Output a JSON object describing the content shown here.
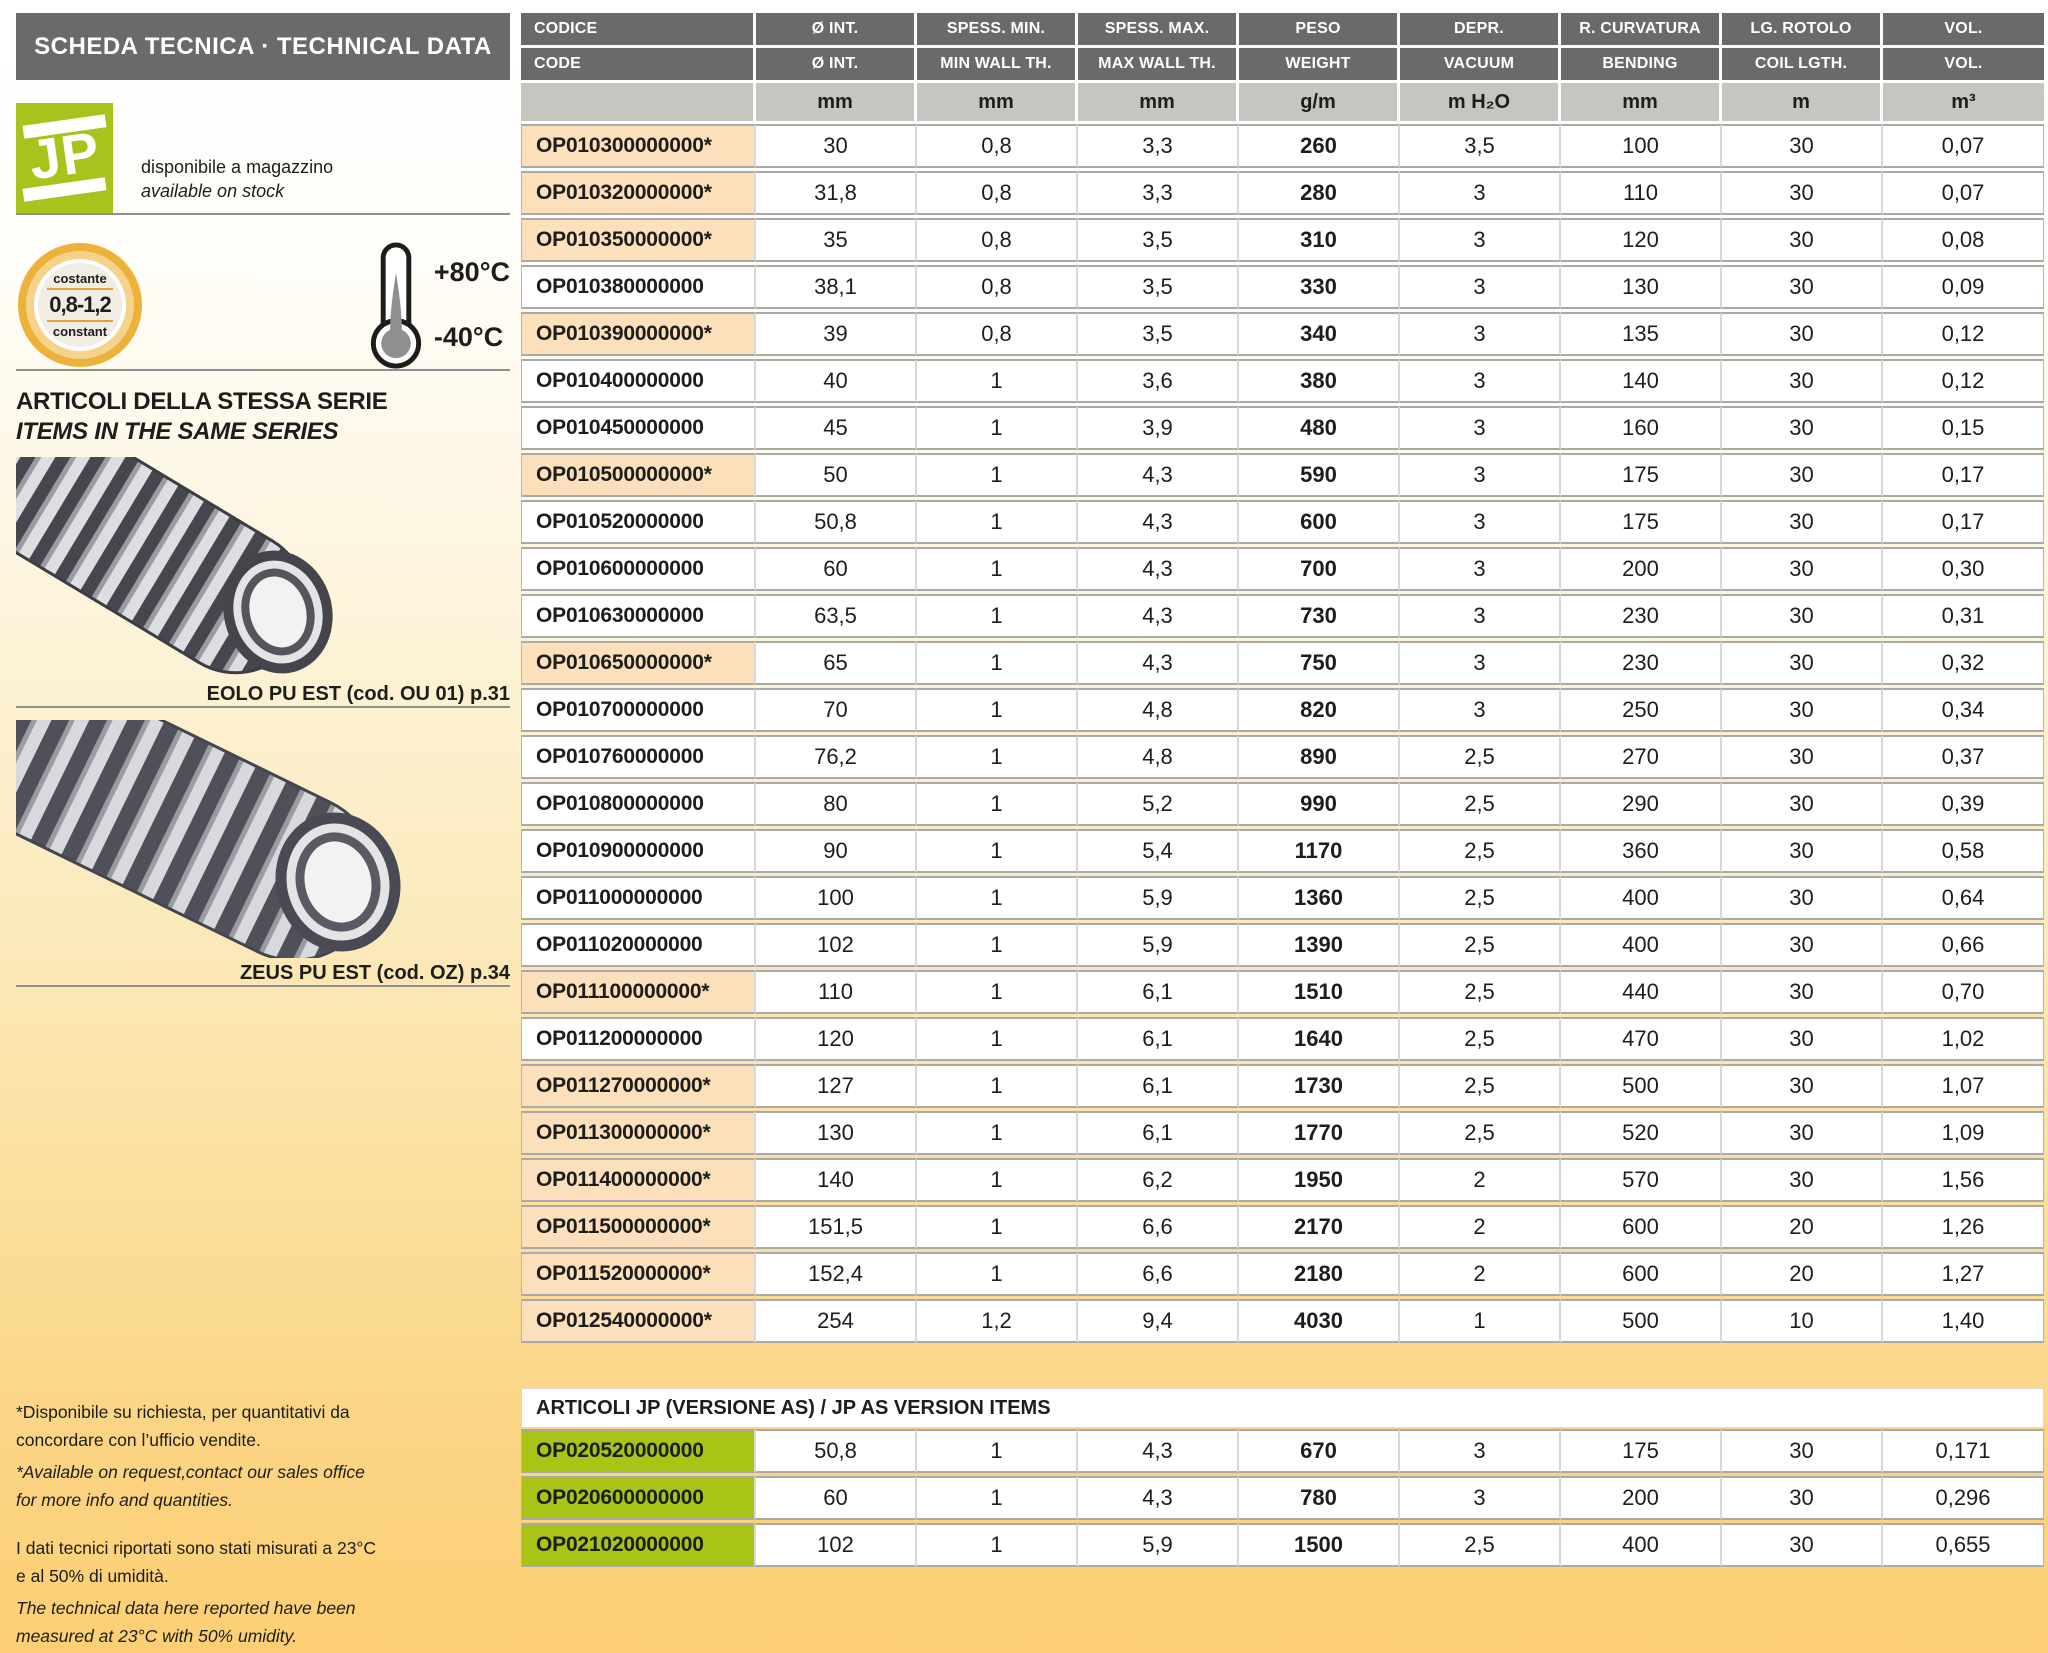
{
  "colors": {
    "header_gray": "#6a6a6a",
    "units_gray": "#c7c5c2",
    "highlight_peach": "#fce0bc",
    "as_green": "#a9c417",
    "jp_green": "#a6c41b",
    "badge_gold": "#edb23c",
    "page_bottom": "#fccf74"
  },
  "sidebar": {
    "title": "SCHEDA TECNICA · TECHNICAL DATA",
    "logo_text": "JP",
    "stock_note_it": "disponibile a magazzino",
    "stock_note_en": "available on stock",
    "badge": {
      "top": "costante",
      "value": "0,8-1,2",
      "bottom": "constant"
    },
    "temperature": {
      "max": "+80°C",
      "min": "-40°C"
    },
    "series_title_it": "ARTICOLI DELLA STESSA SERIE",
    "series_title_en": "ITEMS IN THE SAME SERIES",
    "related_items": [
      {
        "name": "EOLO PU EST",
        "caption": "EOLO PU EST (cod. OU 01) p.31"
      },
      {
        "name": "ZEUS PU EST",
        "caption": "ZEUS PU EST (cod. OZ) p.34"
      }
    ],
    "footnotes": [
      {
        "text": "*Disponibile su richiesta, per quantitativi da\nconcordare con l’ufficio vendite.",
        "italic": false
      },
      {
        "text": "*Available on request,contact our sales office\nfor more info and quantities.",
        "italic": true
      },
      {
        "text": "I dati tecnici riportati sono stati misurati a 23°C\ne al 50% di umidità.",
        "italic": false
      },
      {
        "text": "The technical data here reported have been\nmeasured at 23°C with 50% umidity.",
        "italic": true
      }
    ]
  },
  "table": {
    "header_row_1": [
      "CODICE",
      "Ø INT.",
      "SPESS. MIN.",
      "SPESS. MAX.",
      "PESO",
      "DEPR.",
      "R. CURVATURA",
      "LG. ROTOLO",
      "VOL."
    ],
    "header_row_2": [
      "CODE",
      "Ø INT.",
      "MIN WALL TH.",
      "MAX WALL TH.",
      "WEIGHT",
      "VACUUM",
      "BENDING",
      "COIL LGTH.",
      "VOL."
    ],
    "units": [
      "",
      "mm",
      "mm",
      "mm",
      "g/m",
      "m H₂O",
      "mm",
      "m",
      "m³"
    ],
    "rows": [
      {
        "code": "OP010300000000*",
        "highlight": true,
        "values": [
          "30",
          "0,8",
          "3,3",
          "260",
          "3,5",
          "100",
          "30",
          "0,07"
        ]
      },
      {
        "code": "OP010320000000*",
        "highlight": true,
        "values": [
          "31,8",
          "0,8",
          "3,3",
          "280",
          "3",
          "110",
          "30",
          "0,07"
        ]
      },
      {
        "code": "OP010350000000*",
        "highlight": true,
        "values": [
          "35",
          "0,8",
          "3,5",
          "310",
          "3",
          "120",
          "30",
          "0,08"
        ]
      },
      {
        "code": "OP010380000000",
        "highlight": false,
        "values": [
          "38,1",
          "0,8",
          "3,5",
          "330",
          "3",
          "130",
          "30",
          "0,09"
        ]
      },
      {
        "code": "OP010390000000*",
        "highlight": true,
        "values": [
          "39",
          "0,8",
          "3,5",
          "340",
          "3",
          "135",
          "30",
          "0,12"
        ]
      },
      {
        "code": "OP010400000000",
        "highlight": false,
        "values": [
          "40",
          "1",
          "3,6",
          "380",
          "3",
          "140",
          "30",
          "0,12"
        ]
      },
      {
        "code": "OP010450000000",
        "highlight": false,
        "values": [
          "45",
          "1",
          "3,9",
          "480",
          "3",
          "160",
          "30",
          "0,15"
        ]
      },
      {
        "code": "OP010500000000*",
        "highlight": true,
        "values": [
          "50",
          "1",
          "4,3",
          "590",
          "3",
          "175",
          "30",
          "0,17"
        ]
      },
      {
        "code": "OP010520000000",
        "highlight": false,
        "values": [
          "50,8",
          "1",
          "4,3",
          "600",
          "3",
          "175",
          "30",
          "0,17"
        ]
      },
      {
        "code": "OP010600000000",
        "highlight": false,
        "values": [
          "60",
          "1",
          "4,3",
          "700",
          "3",
          "200",
          "30",
          "0,30"
        ]
      },
      {
        "code": "OP010630000000",
        "highlight": false,
        "values": [
          "63,5",
          "1",
          "4,3",
          "730",
          "3",
          "230",
          "30",
          "0,31"
        ]
      },
      {
        "code": "OP010650000000*",
        "highlight": true,
        "values": [
          "65",
          "1",
          "4,3",
          "750",
          "3",
          "230",
          "30",
          "0,32"
        ]
      },
      {
        "code": "OP010700000000",
        "highlight": false,
        "values": [
          "70",
          "1",
          "4,8",
          "820",
          "3",
          "250",
          "30",
          "0,34"
        ]
      },
      {
        "code": "OP010760000000",
        "highlight": false,
        "values": [
          "76,2",
          "1",
          "4,8",
          "890",
          "2,5",
          "270",
          "30",
          "0,37"
        ]
      },
      {
        "code": "OP010800000000",
        "highlight": false,
        "values": [
          "80",
          "1",
          "5,2",
          "990",
          "2,5",
          "290",
          "30",
          "0,39"
        ]
      },
      {
        "code": "OP010900000000",
        "highlight": false,
        "values": [
          "90",
          "1",
          "5,4",
          "1170",
          "2,5",
          "360",
          "30",
          "0,58"
        ]
      },
      {
        "code": "OP011000000000",
        "highlight": false,
        "values": [
          "100",
          "1",
          "5,9",
          "1360",
          "2,5",
          "400",
          "30",
          "0,64"
        ]
      },
      {
        "code": "OP011020000000",
        "highlight": false,
        "values": [
          "102",
          "1",
          "5,9",
          "1390",
          "2,5",
          "400",
          "30",
          "0,66"
        ]
      },
      {
        "code": "OP011100000000*",
        "highlight": true,
        "values": [
          "110",
          "1",
          "6,1",
          "1510",
          "2,5",
          "440",
          "30",
          "0,70"
        ]
      },
      {
        "code": "OP011200000000",
        "highlight": false,
        "values": [
          "120",
          "1",
          "6,1",
          "1640",
          "2,5",
          "470",
          "30",
          "1,02"
        ]
      },
      {
        "code": "OP011270000000*",
        "highlight": true,
        "values": [
          "127",
          "1",
          "6,1",
          "1730",
          "2,5",
          "500",
          "30",
          "1,07"
        ]
      },
      {
        "code": "OP011300000000*",
        "highlight": true,
        "values": [
          "130",
          "1",
          "6,1",
          "1770",
          "2,5",
          "520",
          "30",
          "1,09"
        ]
      },
      {
        "code": "OP011400000000*",
        "highlight": true,
        "values": [
          "140",
          "1",
          "6,2",
          "1950",
          "2",
          "570",
          "30",
          "1,56"
        ]
      },
      {
        "code": "OP011500000000*",
        "highlight": true,
        "values": [
          "151,5",
          "1",
          "6,6",
          "2170",
          "2",
          "600",
          "20",
          "1,26"
        ]
      },
      {
        "code": "OP011520000000*",
        "highlight": true,
        "values": [
          "152,4",
          "1",
          "6,6",
          "2180",
          "2",
          "600",
          "20",
          "1,27"
        ]
      },
      {
        "code": "OP012540000000*",
        "highlight": true,
        "values": [
          "254",
          "1,2",
          "9,4",
          "4030",
          "1",
          "500",
          "10",
          "1,40"
        ]
      }
    ]
  },
  "as_section": {
    "title": "ARTICOLI JP (VERSIONE AS) / JP AS VERSION ITEMS",
    "rows": [
      {
        "code": "OP020520000000",
        "values": [
          "50,8",
          "1",
          "4,3",
          "670",
          "3",
          "175",
          "30",
          "0,171"
        ]
      },
      {
        "code": "OP020600000000",
        "values": [
          "60",
          "1",
          "4,3",
          "780",
          "3",
          "200",
          "30",
          "0,296"
        ]
      },
      {
        "code": "OP021020000000",
        "values": [
          "102",
          "1",
          "5,9",
          "1500",
          "2,5",
          "400",
          "30",
          "0,655"
        ]
      }
    ]
  }
}
